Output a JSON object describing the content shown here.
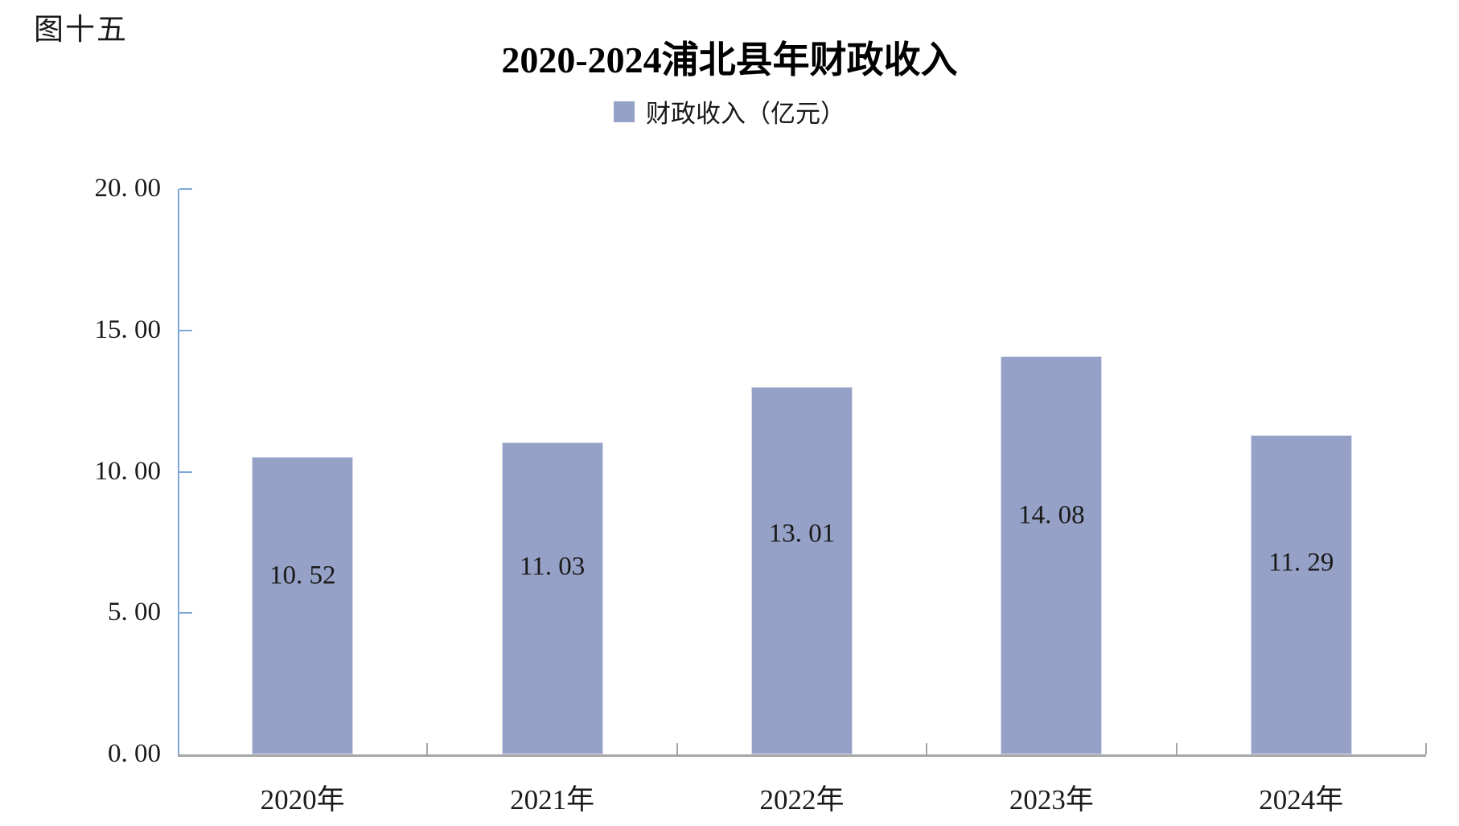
{
  "figure_label": "图十五",
  "title": "2020-2024浦北县年财政收入",
  "legend": {
    "swatch_color": "#95A1C6",
    "label": "财政收入（亿元）"
  },
  "chart_data": {
    "type": "bar",
    "title": "2020-2024浦北县年财政收入",
    "categories": [
      "2020年",
      "2021年",
      "2022年",
      "2023年",
      "2024年"
    ],
    "series": [
      {
        "name": "财政收入（亿元）",
        "values": [
          10.52,
          11.03,
          13.01,
          14.08,
          11.29
        ]
      }
    ],
    "value_labels": [
      "10. 52",
      "11. 03",
      "13. 01",
      "14. 08",
      "11. 29"
    ],
    "xlabel": "",
    "ylabel": "",
    "ylim": [
      0,
      20
    ],
    "ytick_interval": 5,
    "ytick_labels": [
      "0. 00",
      "5. 00",
      "10. 00",
      "15. 00",
      "20. 00"
    ],
    "grid": false,
    "legend_position": "top",
    "bar_color": "#95A1C6",
    "axis_colors": {
      "y_axis": "#7EA6D9",
      "x_axis": "#A6A6A6"
    }
  }
}
